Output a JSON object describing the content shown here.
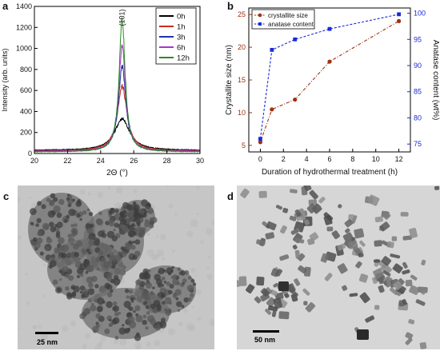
{
  "chart_data": [
    {
      "panel_label": "a",
      "type": "line",
      "xlabel": "2Θ (°)",
      "ylabel": "Intensity (arb. units)",
      "xlim": [
        20,
        30
      ],
      "ylim": [
        0,
        1400
      ],
      "x_ticks": [
        "20",
        "22",
        "24",
        "26",
        "28",
        "30"
      ],
      "y_ticks": [
        "0",
        "200",
        "400",
        "600",
        "800",
        "1000",
        "1200",
        "1400"
      ],
      "annotation": "(101)",
      "annotation_x": 25.3,
      "legend_position": "top-right",
      "peak_center": 25.3,
      "series": [
        {
          "name": "0h",
          "color": "#000000",
          "baseline": 30,
          "peak": 330,
          "width": 0.55
        },
        {
          "name": "1h",
          "color": "#cc2a1e",
          "baseline": 25,
          "peak": 640,
          "width": 0.35
        },
        {
          "name": "3h",
          "color": "#2233aa",
          "baseline": 20,
          "peak": 830,
          "width": 0.27
        },
        {
          "name": "6h",
          "color": "#aa33cc",
          "baseline": 20,
          "peak": 1030,
          "width": 0.25
        },
        {
          "name": "12h",
          "color": "#2a8a22",
          "baseline": 15,
          "peak": 1280,
          "width": 0.22
        }
      ]
    },
    {
      "panel_label": "b",
      "type": "line",
      "xlabel": "Duration of hydrothermal treatment (h)",
      "ylabel": "Crystallite size (nm)",
      "ylabel_right": "Anatase content (wt%)",
      "x": [
        0,
        1,
        3,
        6,
        12
      ],
      "xlim": [
        -1,
        13
      ],
      "ylim": [
        4,
        26
      ],
      "ylim_right": [
        73.5,
        101
      ],
      "x_ticks": [
        "0",
        "2",
        "4",
        "6",
        "8",
        "10",
        "12"
      ],
      "y_ticks": [
        "5",
        "10",
        "15",
        "20",
        "25"
      ],
      "y_ticks_right": [
        "75",
        "80",
        "85",
        "90",
        "95",
        "100"
      ],
      "legend_position": "top-left",
      "series": [
        {
          "name": "crystallite size",
          "color": "#a03010",
          "axis": "left",
          "marker": "circle",
          "values": [
            5.5,
            10.5,
            12,
            17.8,
            24
          ]
        },
        {
          "name": "anatase content",
          "color": "#1a2ad8",
          "axis": "right",
          "marker": "square",
          "values": [
            76,
            93,
            95,
            97,
            99.8
          ]
        }
      ]
    }
  ],
  "tem": [
    {
      "panel_label": "c",
      "scale_bar": "25 nm"
    },
    {
      "panel_label": "d",
      "scale_bar": "50 nm"
    }
  ]
}
